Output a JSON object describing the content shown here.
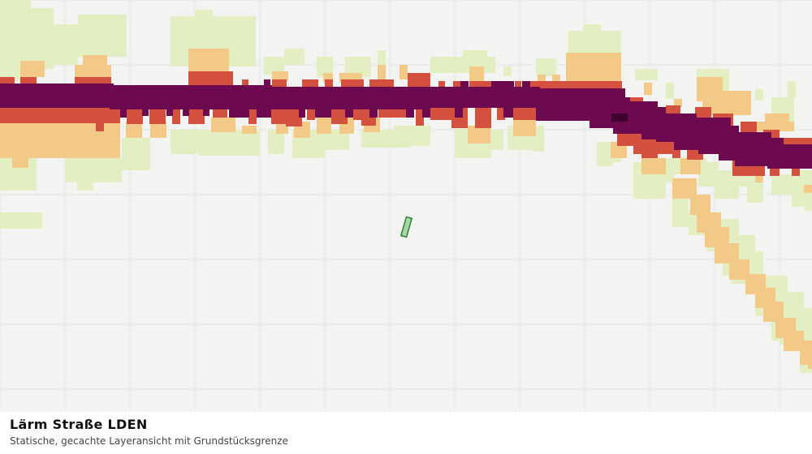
{
  "title": "Lärm Straße LDEN",
  "subtitle": "Statische, gecachte Layeransicht mit Grundstücksgrenze",
  "map": {
    "layer": "Lärm Straße LDEN",
    "view": "static-cached",
    "overlay": "parcel-boundary",
    "colors": {
      "background": "#f3f4f2",
      "grid": "#e2e4e0",
      "level1": "#e3eec3",
      "level2": "#f2c987",
      "level3": "#d5513f",
      "level4": "#6d0a4f",
      "level5": "#3d0430",
      "parcel": "#2e7d32"
    }
  }
}
